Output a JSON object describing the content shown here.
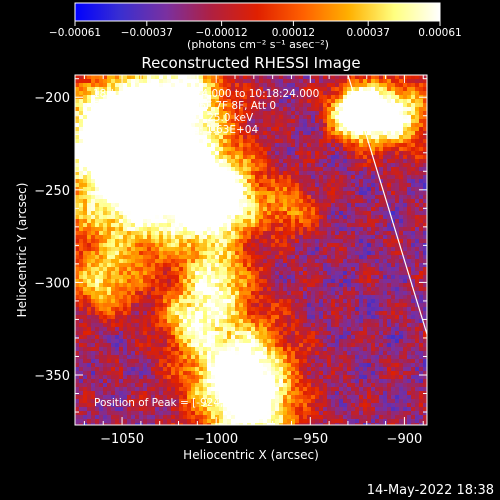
{
  "chart_data": {
    "type": "heatmap",
    "title": "Reconstructed RHESSI Image",
    "xlabel": "Heliocentric X (arcsec)",
    "ylabel": "Heliocentric Y (arcsec)",
    "xlim": [
      -1075,
      -888
    ],
    "ylim": [
      -377,
      -188
    ],
    "x_ticks": [
      {
        "value": -1050,
        "label": "−1050"
      },
      {
        "value": -1000,
        "label": "−1000"
      },
      {
        "value": -950,
        "label": "−950"
      },
      {
        "value": -900,
        "label": "−900"
      }
    ],
    "y_ticks": [
      {
        "value": -200,
        "label": "−200"
      },
      {
        "value": -250,
        "label": "−250"
      },
      {
        "value": -300,
        "label": "−300"
      },
      {
        "value": -350,
        "label": "−350"
      }
    ],
    "colorbar": {
      "ticks": [
        {
          "value": -0.00061,
          "label": "−0.00061"
        },
        {
          "value": -0.00037,
          "label": "−0.00037"
        },
        {
          "value": -0.00012,
          "label": "−0.00012"
        },
        {
          "value": 0.00012,
          "label": "0.00012"
        },
        {
          "value": 0.00037,
          "label": "0.00037"
        },
        {
          "value": 0.00061,
          "label": "0.00061"
        }
      ],
      "range": [
        -0.00061,
        0.00061
      ],
      "unit_label": "(photons cm⁻² s⁻¹ asec⁻²)",
      "stops": [
        "#0000ff",
        "#3a2fd0",
        "#7a30a0",
        "#b02040",
        "#e02000",
        "#ff6000",
        "#ffb000",
        "#ffff80",
        "#ffffff"
      ]
    },
    "annotations": [
      "18-Jun-2013 10:12:24.000 to 10:18:24.000",
      "Detectors: 3F 4F 5F 6F 7F 8F, Att 0",
      "Energy Range: 12.0 - 25.0 keV",
      "Clean    Total counts: 1.63E+04"
    ],
    "peak_label": "Position of Peak = [-924,-208]",
    "peak": [
      -924,
      -208
    ],
    "limb_line": [
      [
        -930,
        -188
      ],
      [
        -888,
        -328
      ]
    ],
    "footer": "14-May-2022 18:38"
  }
}
